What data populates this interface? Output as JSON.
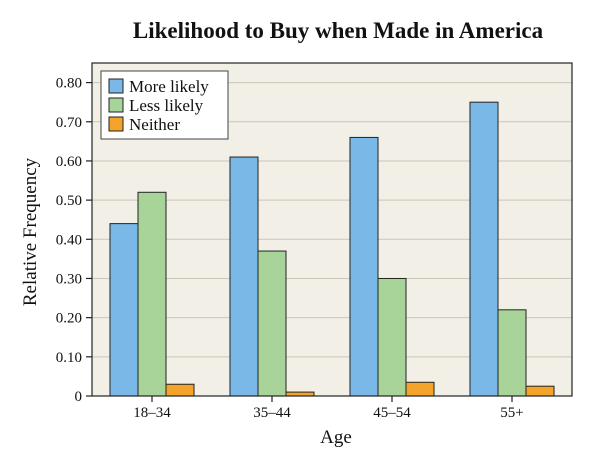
{
  "chart_data": {
    "type": "bar",
    "title": "Likelihood to Buy when Made in America",
    "xlabel": "Age",
    "ylabel": "Relative Frequency",
    "categories": [
      "18–34",
      "35–44",
      "45–54",
      "55+"
    ],
    "series": [
      {
        "name": "More likely",
        "color": "#7ab8e8",
        "values": [
          0.44,
          0.61,
          0.66,
          0.75
        ]
      },
      {
        "name": "Less likely",
        "color": "#a8d49a",
        "values": [
          0.52,
          0.37,
          0.3,
          0.22
        ]
      },
      {
        "name": "Neither",
        "color": "#f2a52a",
        "values": [
          0.03,
          0.01,
          0.035,
          0.025
        ]
      }
    ],
    "ylim": [
      0,
      0.85
    ],
    "yticks": [
      0,
      0.1,
      0.2,
      0.3,
      0.4,
      0.5,
      0.6,
      0.7,
      0.8
    ],
    "ytick_labels": [
      "0",
      "0.10",
      "0.20",
      "0.30",
      "0.40",
      "0.50",
      "0.60",
      "0.70",
      "0.80"
    ],
    "grid": true,
    "legend": "top-left",
    "colors": {
      "plot_background": "#f1efe6",
      "gridline": "#c9c6bb",
      "bar_outline": "#222222"
    }
  }
}
